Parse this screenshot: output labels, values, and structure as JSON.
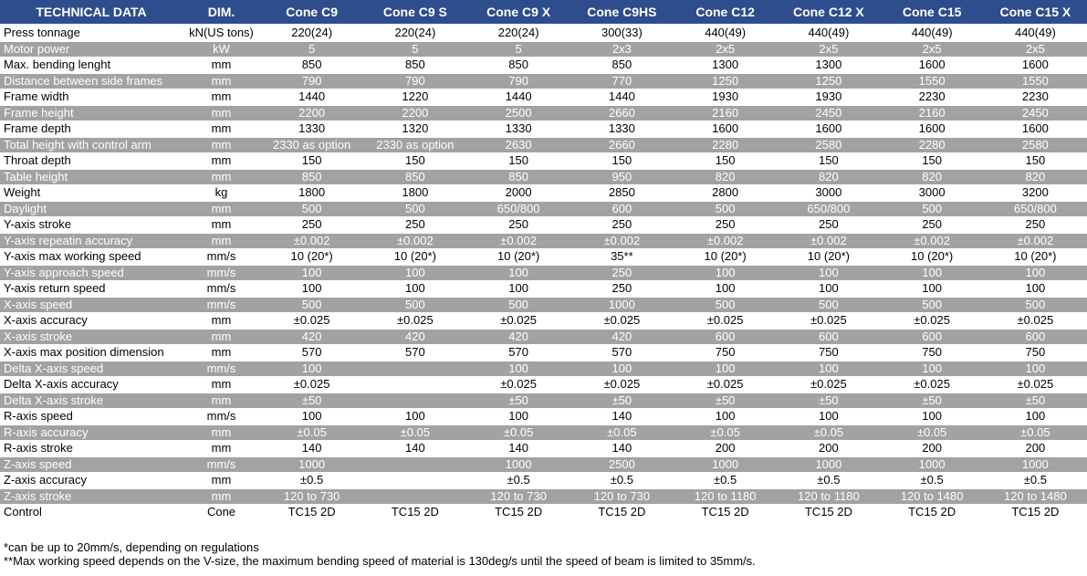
{
  "colors": {
    "header_bg": "#2e4d8c",
    "header_text": "#ffffff",
    "stripe_bg": "#a2a2a2",
    "stripe_text": "#ffffff",
    "row_text": "#000000"
  },
  "table": {
    "columns": [
      "TECHNICAL DATA",
      "DIM.",
      "Cone C9",
      "Cone C9 S",
      "Cone C9 X",
      "Cone C9HS",
      "Cone C12",
      "Cone C12 X",
      "Cone C15",
      "Cone C15 X"
    ],
    "rows": [
      {
        "label": "Press tonnage",
        "dim": "kN(US tons)",
        "values": [
          "220(24)",
          "220(24)",
          "220(24)",
          "300(33)",
          "440(49)",
          "440(49)",
          "440(49)",
          "440(49)"
        ]
      },
      {
        "label": "Motor power",
        "dim": "kW",
        "values": [
          "5",
          "5",
          "5",
          "2x3",
          "2x5",
          "2x5",
          "2x5",
          "2x5"
        ]
      },
      {
        "label": "Max. bending lenght",
        "dim": "mm",
        "values": [
          "850",
          "850",
          "850",
          "850",
          "1300",
          "1300",
          "1600",
          "1600"
        ]
      },
      {
        "label": "Distance between side frames",
        "dim": "mm",
        "values": [
          "790",
          "790",
          "790",
          "770",
          "1250",
          "1250",
          "1550",
          "1550"
        ]
      },
      {
        "label": "Frame width",
        "dim": "mm",
        "values": [
          "1440",
          "1220",
          "1440",
          "1440",
          "1930",
          "1930",
          "2230",
          "2230"
        ]
      },
      {
        "label": "Frame height",
        "dim": "mm",
        "values": [
          "2200",
          "2200",
          "2500",
          "2660",
          "2160",
          "2450",
          "2160",
          "2450"
        ]
      },
      {
        "label": "Frame depth",
        "dim": "mm",
        "values": [
          "1330",
          "1320",
          "1330",
          "1330",
          "1600",
          "1600",
          "1600",
          "1600"
        ]
      },
      {
        "label": "Total height with control arm",
        "dim": "mm",
        "values": [
          "2330 as option",
          "2330 as option",
          "2630",
          "2660",
          "2280",
          "2580",
          "2280",
          "2580"
        ]
      },
      {
        "label": "Throat depth",
        "dim": "mm",
        "values": [
          "150",
          "150",
          "150",
          "150",
          "150",
          "150",
          "150",
          "150"
        ]
      },
      {
        "label": "Table height",
        "dim": "mm",
        "values": [
          "850",
          "850",
          "850",
          "950",
          "820",
          "820",
          "820",
          "820"
        ]
      },
      {
        "label": "Weight",
        "dim": "kg",
        "values": [
          "1800",
          "1800",
          "2000",
          "2850",
          "2800",
          "3000",
          "3000",
          "3200"
        ]
      },
      {
        "label": "Daylight",
        "dim": "mm",
        "values": [
          "500",
          "500",
          "650/800",
          "600",
          "500",
          "650/800",
          "500",
          "650/800"
        ]
      },
      {
        "label": "Y-axis stroke",
        "dim": "mm",
        "values": [
          "250",
          "250",
          "250",
          "250",
          "250",
          "250",
          "250",
          "250"
        ]
      },
      {
        "label": "Y-axis repeatin accuracy",
        "dim": "mm",
        "values": [
          "±0.002",
          "±0.002",
          "±0.002",
          "±0.002",
          "±0.002",
          "±0.002",
          "±0.002",
          "±0.002"
        ]
      },
      {
        "label": "Y-axis max working speed",
        "dim": "mm/s",
        "values": [
          "10 (20*)",
          "10 (20*)",
          "10 (20*)",
          "35**",
          "10 (20*)",
          "10 (20*)",
          "10 (20*)",
          "10 (20*)"
        ]
      },
      {
        "label": "Y-axis approach speed",
        "dim": "mm/s",
        "values": [
          "100",
          "100",
          "100",
          "250",
          "100",
          "100",
          "100",
          "100"
        ]
      },
      {
        "label": "Y-axis return speed",
        "dim": "mm/s",
        "values": [
          "100",
          "100",
          "100",
          "250",
          "100",
          "100",
          "100",
          "100"
        ]
      },
      {
        "label": "X-axis speed",
        "dim": "mm/s",
        "values": [
          "500",
          "500",
          "500",
          "1000",
          "500",
          "500",
          "500",
          "500"
        ]
      },
      {
        "label": "X-axis accuracy",
        "dim": "mm",
        "values": [
          "±0.025",
          "±0.025",
          "±0.025",
          "±0.025",
          "±0.025",
          "±0.025",
          "±0.025",
          "±0.025"
        ]
      },
      {
        "label": "X-axis stroke",
        "dim": "mm",
        "values": [
          "420",
          "420",
          "420",
          "420",
          "600",
          "600",
          "600",
          "600"
        ]
      },
      {
        "label": "X-axis max position dimension",
        "dim": "mm",
        "values": [
          "570",
          "570",
          "570",
          "570",
          "750",
          "750",
          "750",
          "750"
        ]
      },
      {
        "label": "Delta X-axis speed",
        "dim": "mm/s",
        "values": [
          "100",
          "",
          "100",
          "100",
          "100",
          "100",
          "100",
          "100"
        ]
      },
      {
        "label": "Delta X-axis accuracy",
        "dim": "mm",
        "values": [
          "±0.025",
          "",
          "±0.025",
          "±0.025",
          "±0.025",
          "±0.025",
          "±0.025",
          "±0.025"
        ]
      },
      {
        "label": "Delta X-axis stroke",
        "dim": "mm",
        "values": [
          "±50",
          "",
          "±50",
          "±50",
          "±50",
          "±50",
          "±50",
          "±50"
        ]
      },
      {
        "label": "R-axis speed",
        "dim": "mm/s",
        "values": [
          "100",
          "100",
          "100",
          "140",
          "100",
          "100",
          "100",
          "100"
        ]
      },
      {
        "label": "R-axis accuracy",
        "dim": "mm",
        "values": [
          "±0.05",
          "±0.05",
          "±0.05",
          "±0.05",
          "±0.05",
          "±0.05",
          "±0.05",
          "±0.05"
        ]
      },
      {
        "label": "R-axis stroke",
        "dim": "mm",
        "values": [
          "140",
          "140",
          "140",
          "140",
          "200",
          "200",
          "200",
          "200"
        ]
      },
      {
        "label": "Z-axis speed",
        "dim": "mm/s",
        "values": [
          "1000",
          "",
          "1000",
          "2500",
          "1000",
          "1000",
          "1000",
          "1000"
        ]
      },
      {
        "label": "Z-axis accuracy",
        "dim": "mm",
        "values": [
          "±0.5",
          "",
          "±0.5",
          "±0.5",
          "±0.5",
          "±0.5",
          "±0.5",
          "±0.5"
        ]
      },
      {
        "label": "Z-axis stroke",
        "dim": "mm",
        "values": [
          "120 to 730",
          "",
          "120 to 730",
          "120 to 730",
          "120 to 1180",
          "120 to 1180",
          "120 to 1480",
          "120 to 1480"
        ]
      },
      {
        "label": "Control",
        "dim": "Cone",
        "values": [
          "TC15 2D",
          "TC15 2D",
          "TC15 2D",
          "TC15 2D",
          "TC15 2D",
          "TC15 2D",
          "TC15 2D",
          "TC15 2D"
        ]
      }
    ]
  },
  "footnotes": [
    "*can be up to 20mm/s, depending on regulations",
    "**Max working speed depends on the V-size, the maximum bending speed of material is 130deg/s until the speed of beam is limited to 35mm/s."
  ]
}
